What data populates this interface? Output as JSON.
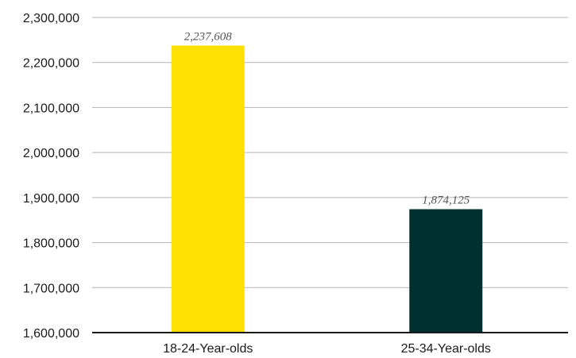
{
  "chart_data": {
    "type": "bar",
    "categories": [
      "18-24-Year-olds",
      "25-34-Year-olds"
    ],
    "values": [
      2237608,
      1874125
    ],
    "data_labels": [
      "2,237,608",
      "1,874,125"
    ],
    "bar_colors": [
      "#FFE000",
      "#003030"
    ],
    "ylim": [
      1600000,
      2300000
    ],
    "yticks": [
      1600000,
      1700000,
      1800000,
      1900000,
      2000000,
      2100000,
      2200000,
      2300000
    ],
    "ytick_labels": [
      "1,600,000",
      "1,700,000",
      "1,800,000",
      "1,900,000",
      "2,000,000",
      "2,100,000",
      "2,200,000",
      "2,300,000"
    ],
    "grid": true,
    "legend": "none",
    "title": "",
    "xlabel": "",
    "ylabel": ""
  }
}
